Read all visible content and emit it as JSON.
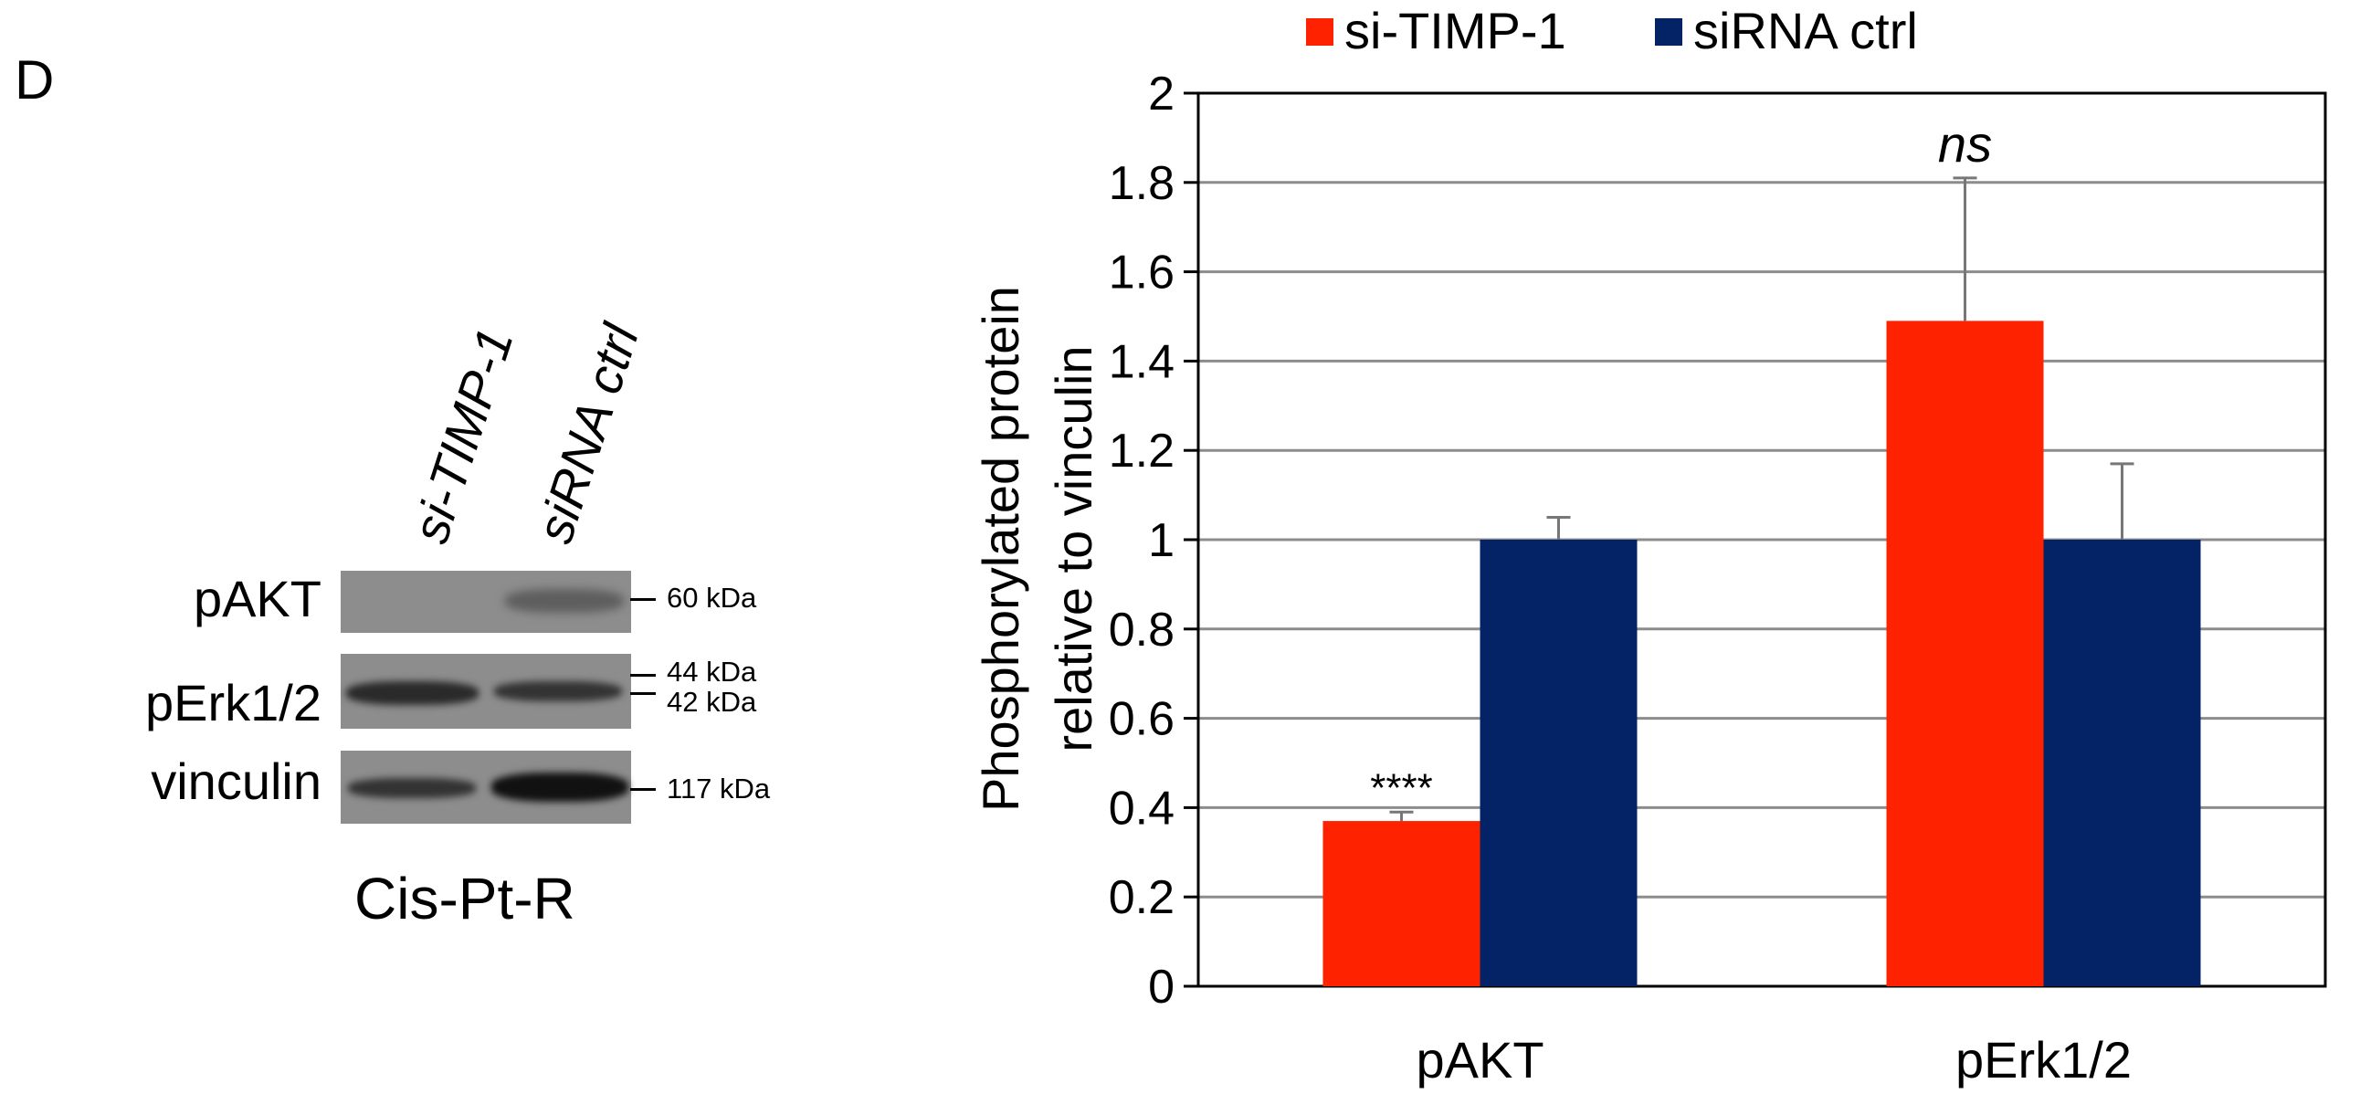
{
  "panel_label": "D",
  "blot": {
    "lanes": [
      "si-TIMP-1",
      "siRNA ctrl"
    ],
    "rows": [
      {
        "label": "pAKT",
        "markers": [
          "60 kDa"
        ]
      },
      {
        "label": "pErk1/2",
        "markers": [
          "44 kDa",
          "42 kDa"
        ]
      },
      {
        "label": "vinculin",
        "markers": [
          "117 kDa"
        ]
      }
    ],
    "caption": "Cis-Pt-R"
  },
  "chart_data": {
    "type": "bar",
    "categories": [
      "pAKT",
      "pErk1/2"
    ],
    "series": [
      {
        "name": "si-TIMP-1",
        "color": "#ff2200",
        "values": [
          0.37,
          1.49
        ],
        "errors": [
          0.02,
          0.32
        ]
      },
      {
        "name": "siRNA ctrl",
        "color": "#042266",
        "values": [
          1.0,
          1.0
        ],
        "errors": [
          0.05,
          0.17
        ]
      }
    ],
    "annotations": [
      {
        "category": "pAKT",
        "series": "si-TIMP-1",
        "text": "****"
      },
      {
        "category": "pErk1/2",
        "series": "si-TIMP-1",
        "text": "ns"
      }
    ],
    "ylabel": [
      "Phosphorylated protein",
      "relative to vinculin"
    ],
    "ylim": [
      0,
      2
    ],
    "yticks": [
      0,
      0.2,
      0.4,
      0.6,
      0.8,
      1,
      1.2,
      1.4,
      1.6,
      1.8,
      2
    ],
    "grid": true,
    "legend_position": "top"
  }
}
